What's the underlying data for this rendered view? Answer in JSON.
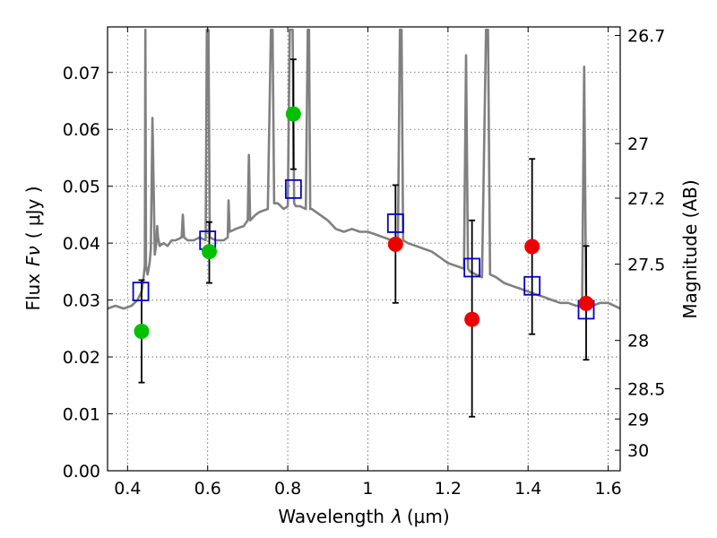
{
  "chart_data": {
    "type": "scatter",
    "xlabel": "Wavelength",
    "xlabel_symbol": "λ",
    "xlabel_unit": "(μm)",
    "ylabel": "Flux",
    "ylabel_symbol": "Fν",
    "ylabel_unit": "( μJy )",
    "y2label": "Magnitude (AB)",
    "xlim": [
      0.35,
      1.63
    ],
    "ylim": [
      0.0,
      0.078
    ],
    "grid": true,
    "x_ticks": [
      {
        "value": 0.4,
        "label": "0.4"
      },
      {
        "value": 0.6,
        "label": "0.6"
      },
      {
        "value": 0.8,
        "label": "0.8"
      },
      {
        "value": 1.0,
        "label": "1"
      },
      {
        "value": 1.2,
        "label": "1.2"
      },
      {
        "value": 1.4,
        "label": "1.4"
      },
      {
        "value": 1.6,
        "label": "1.6"
      }
    ],
    "y_ticks": [
      {
        "value": 0.0,
        "label": "0.00"
      },
      {
        "value": 0.01,
        "label": "0.01"
      },
      {
        "value": 0.02,
        "label": "0.02"
      },
      {
        "value": 0.03,
        "label": "0.03"
      },
      {
        "value": 0.04,
        "label": "0.04"
      },
      {
        "value": 0.05,
        "label": "0.05"
      },
      {
        "value": 0.06,
        "label": "0.06"
      },
      {
        "value": 0.07,
        "label": "0.07"
      }
    ],
    "y2_ticks": [
      {
        "flux": 0.0765,
        "label": "26.7"
      },
      {
        "flux": 0.0575,
        "label": "27"
      },
      {
        "flux": 0.0479,
        "label": "27.2"
      },
      {
        "flux": 0.0363,
        "label": "27.5"
      },
      {
        "flux": 0.0229,
        "label": "28"
      },
      {
        "flux": 0.0144,
        "label": "28.5"
      },
      {
        "flux": 0.0091,
        "label": "29"
      },
      {
        "flux": 0.0036,
        "label": "30"
      }
    ],
    "series": [
      {
        "kind": "spectrum",
        "color": "#808080",
        "x": [
          0.35,
          0.37,
          0.39,
          0.41,
          0.425,
          0.435,
          0.44,
          0.443,
          0.4445,
          0.446,
          0.45,
          0.455,
          0.458,
          0.462,
          0.468,
          0.472,
          0.474,
          0.476,
          0.48,
          0.49,
          0.5,
          0.51,
          0.52,
          0.535,
          0.538,
          0.541,
          0.55,
          0.565,
          0.58,
          0.595,
          0.598,
          0.6,
          0.602,
          0.605,
          0.62,
          0.64,
          0.65,
          0.652,
          0.655,
          0.67,
          0.69,
          0.7,
          0.703,
          0.706,
          0.72,
          0.73,
          0.75,
          0.758,
          0.762,
          0.766,
          0.775,
          0.79,
          0.8,
          0.805,
          0.808,
          0.812,
          0.816,
          0.82,
          0.83,
          0.845,
          0.85,
          0.853,
          0.856,
          0.86,
          0.88,
          0.9,
          0.92,
          0.94,
          0.96,
          0.98,
          1.0,
          1.02,
          1.04,
          1.06,
          1.075,
          1.08,
          1.084,
          1.088,
          1.1,
          1.12,
          1.14,
          1.16,
          1.18,
          1.2,
          1.22,
          1.24,
          1.245,
          1.25,
          1.255,
          1.27,
          1.285,
          1.295,
          1.3,
          1.305,
          1.32,
          1.34,
          1.36,
          1.38,
          1.4,
          1.42,
          1.44,
          1.46,
          1.48,
          1.5,
          1.52,
          1.535,
          1.54,
          1.545,
          1.56,
          1.58,
          1.6,
          1.63
        ],
        "y": [
          0.0285,
          0.029,
          0.0285,
          0.029,
          0.03,
          0.0315,
          0.034,
          0.036,
          0.0775,
          0.036,
          0.0345,
          0.0365,
          0.039,
          0.062,
          0.038,
          0.04,
          0.043,
          0.041,
          0.0395,
          0.04,
          0.0395,
          0.0405,
          0.0405,
          0.041,
          0.045,
          0.041,
          0.0405,
          0.0405,
          0.041,
          0.0405,
          0.0775,
          0.0775,
          0.0775,
          0.041,
          0.0405,
          0.0405,
          0.041,
          0.0475,
          0.042,
          0.0425,
          0.043,
          0.044,
          0.0555,
          0.044,
          0.045,
          0.0455,
          0.046,
          0.0775,
          0.0775,
          0.047,
          0.047,
          0.046,
          0.0465,
          0.0775,
          0.0775,
          0.0775,
          0.047,
          0.0465,
          0.0465,
          0.046,
          0.0775,
          0.0775,
          0.046,
          0.046,
          0.045,
          0.044,
          0.0425,
          0.042,
          0.0425,
          0.042,
          0.042,
          0.0415,
          0.041,
          0.0405,
          0.0405,
          0.0775,
          0.0775,
          0.0405,
          0.04,
          0.0395,
          0.039,
          0.0385,
          0.0375,
          0.0365,
          0.036,
          0.0355,
          0.073,
          0.0355,
          0.035,
          0.0345,
          0.034,
          0.0775,
          0.0775,
          0.0345,
          0.034,
          0.033,
          0.0325,
          0.032,
          0.0315,
          0.031,
          0.0305,
          0.03,
          0.0295,
          0.0295,
          0.029,
          0.029,
          0.071,
          0.029,
          0.029,
          0.0295,
          0.0295,
          0.0285
        ]
      },
      {
        "kind": "observed",
        "color": "#00c000",
        "points": [
          {
            "x": 0.435,
            "y": 0.0245,
            "err": [
              0.0155,
              0.0335
            ]
          },
          {
            "x": 0.604,
            "y": 0.0385,
            "err": [
              0.033,
              0.0437
            ]
          },
          {
            "x": 0.814,
            "y": 0.0627,
            "err": [
              0.053,
              0.0723
            ]
          }
        ]
      },
      {
        "kind": "observed",
        "color": "#ee0000",
        "points": [
          {
            "x": 1.069,
            "y": 0.0398,
            "err": [
              0.0295,
              0.0502
            ]
          },
          {
            "x": 1.26,
            "y": 0.0266,
            "err": [
              0.0095,
              0.044
            ]
          },
          {
            "x": 1.41,
            "y": 0.0394,
            "err": [
              0.024,
              0.0548
            ]
          },
          {
            "x": 1.545,
            "y": 0.0294,
            "err": [
              0.0195,
              0.0395
            ]
          }
        ]
      },
      {
        "kind": "model",
        "color": "#0000cc",
        "points": [
          {
            "x": 0.433,
            "y": 0.0315
          },
          {
            "x": 0.6,
            "y": 0.0405
          },
          {
            "x": 0.814,
            "y": 0.0495
          },
          {
            "x": 1.069,
            "y": 0.0435
          },
          {
            "x": 1.26,
            "y": 0.0357
          },
          {
            "x": 1.41,
            "y": 0.0325
          },
          {
            "x": 1.545,
            "y": 0.0283
          }
        ]
      }
    ]
  }
}
